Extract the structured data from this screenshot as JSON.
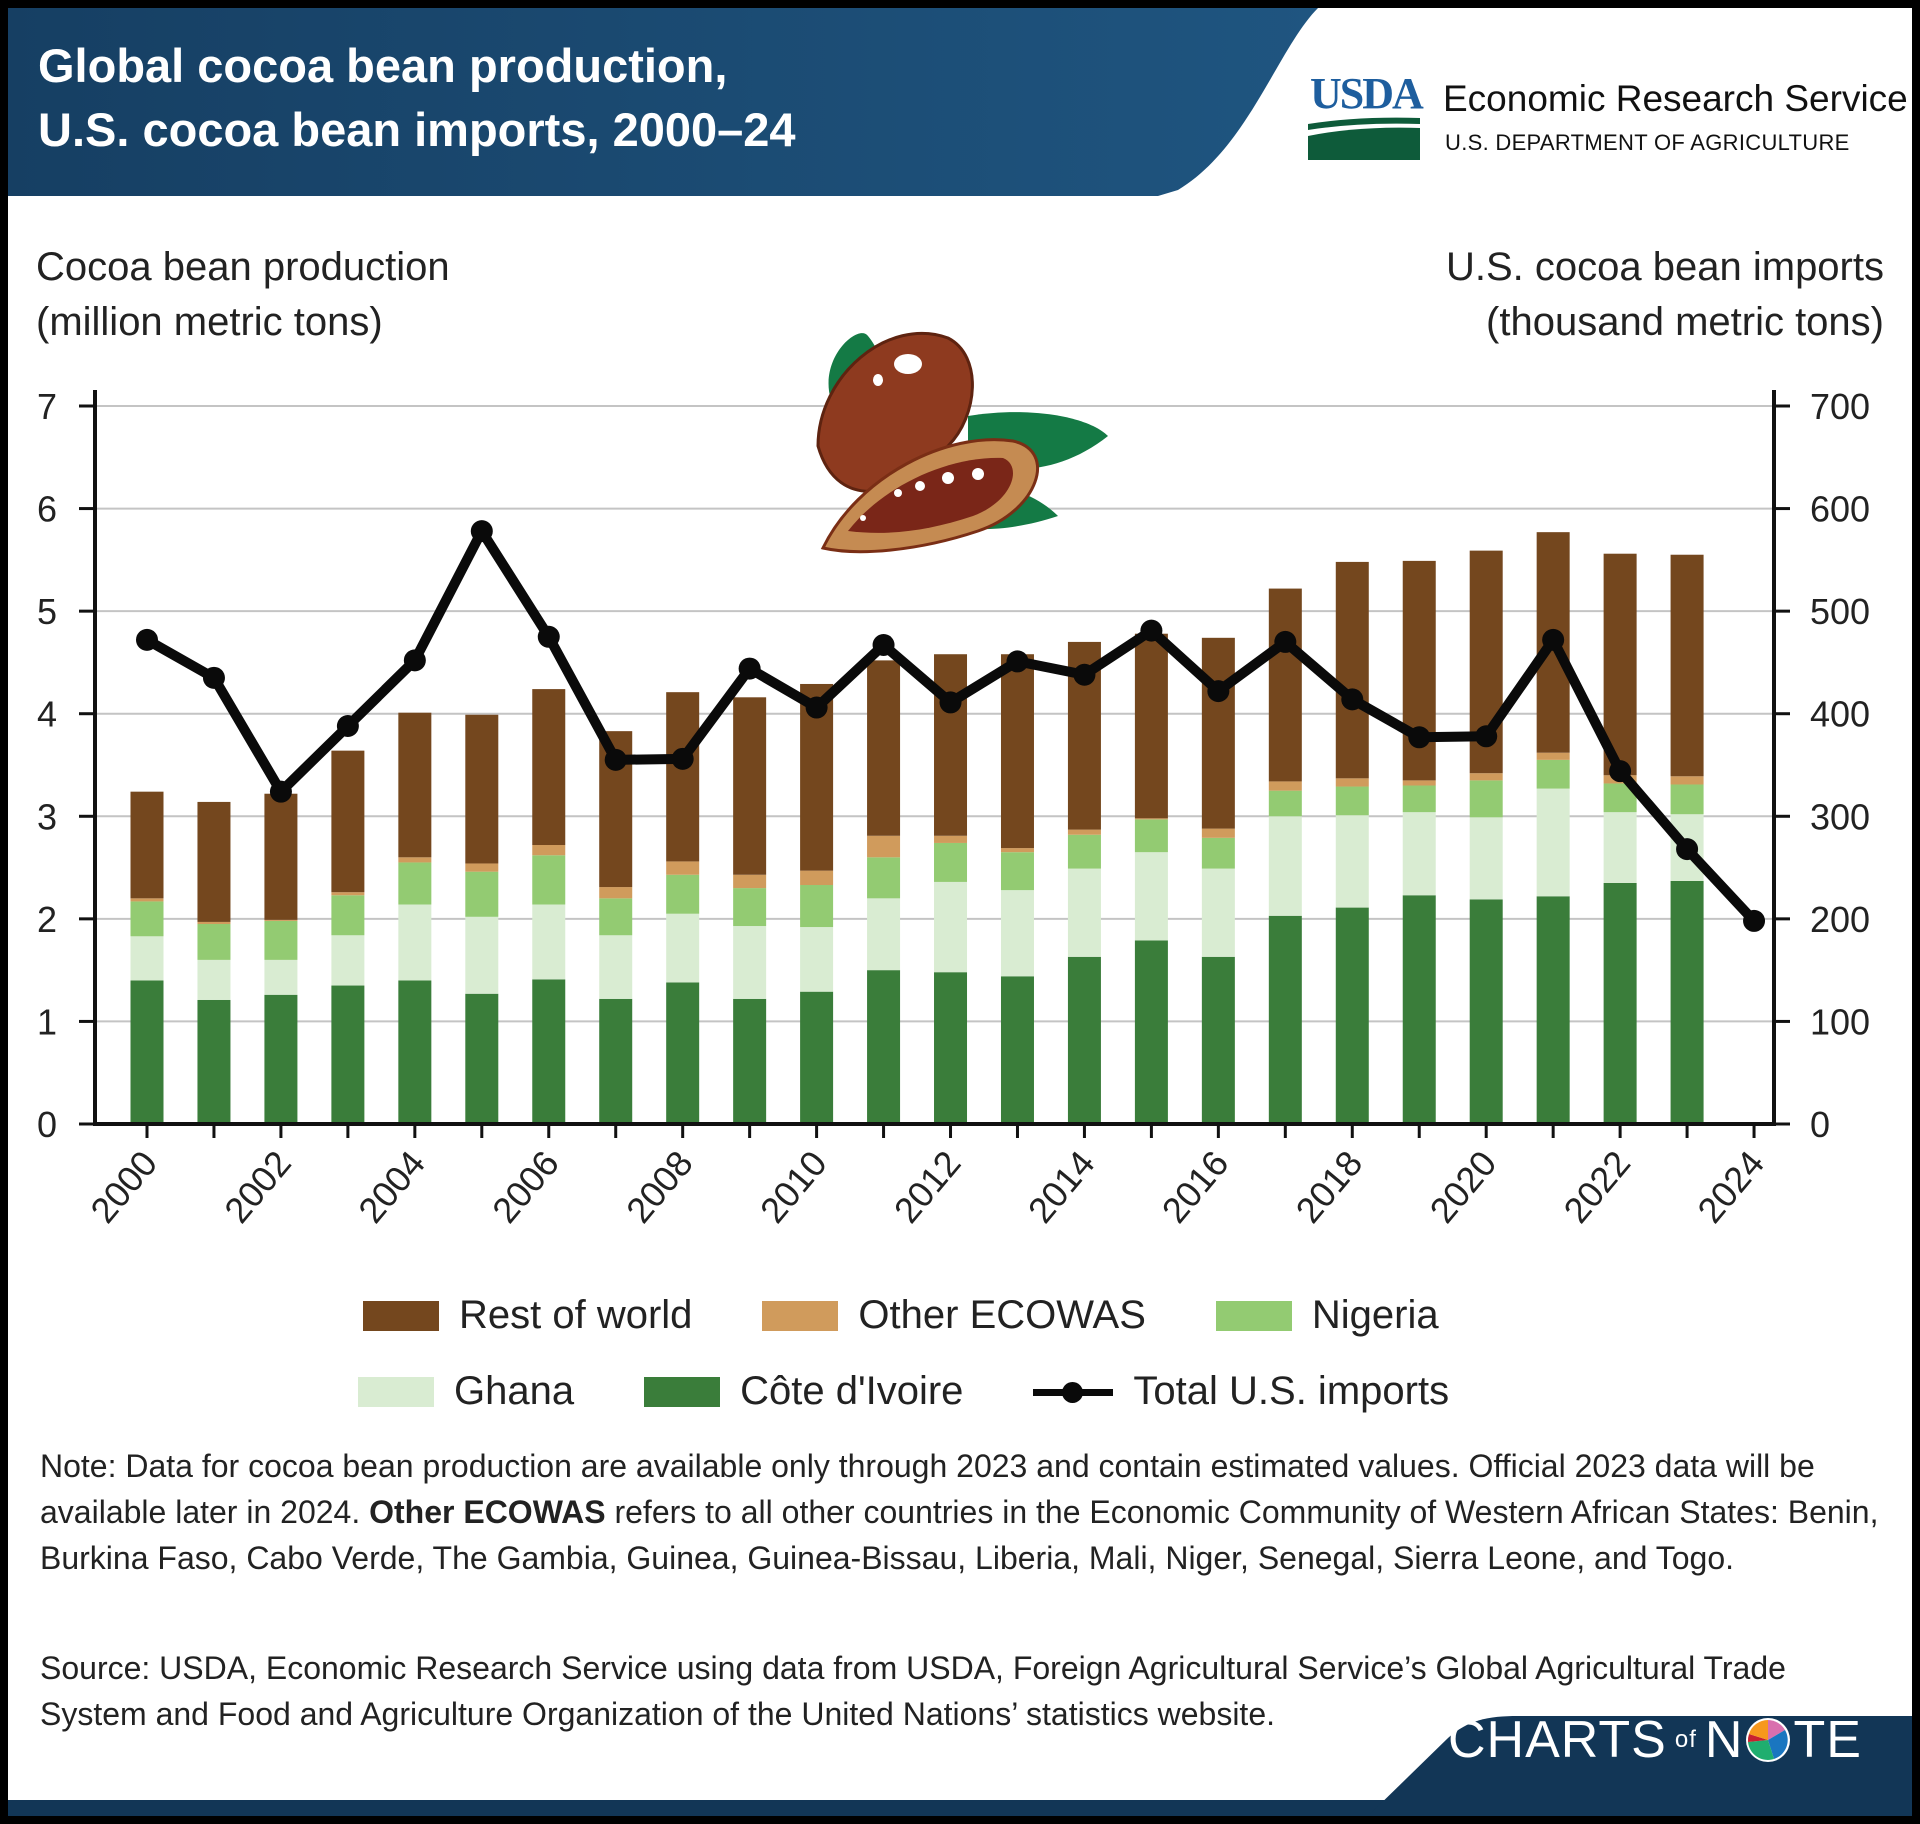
{
  "header": {
    "title_line1": "Global cocoa bean production,",
    "title_line2": "U.S. cocoa bean imports, 2000–24",
    "logo_usda": "USDA",
    "agency_name": "Economic Research Service",
    "department": "U.S. DEPARTMENT OF AGRICULTURE",
    "header_color": "#1b4a73"
  },
  "chart_data": {
    "type": "bar+line",
    "title": "Global cocoa bean production, U.S. cocoa bean imports, 2000–24",
    "ylabel_left_line1": "Cocoa bean production",
    "ylabel_left_line2": "(million metric tons)",
    "ylabel_right_line1": "U.S. cocoa bean imports",
    "ylabel_right_line2": "(thousand metric tons)",
    "ylim_left": [
      0,
      7
    ],
    "ylim_right": [
      0,
      700
    ],
    "yticks_left": [
      "0",
      "1",
      "2",
      "3",
      "4",
      "5",
      "6",
      "7"
    ],
    "yticks_right": [
      "0",
      "100",
      "200",
      "300",
      "400",
      "500",
      "600",
      "700"
    ],
    "xtick_labels": [
      "2000",
      "2002",
      "2004",
      "2006",
      "2008",
      "2010",
      "2012",
      "2014",
      "2016",
      "2018",
      "2020",
      "2022",
      "2024"
    ],
    "grid": true,
    "categories": [
      2000,
      2001,
      2002,
      2003,
      2004,
      2005,
      2006,
      2007,
      2008,
      2009,
      2010,
      2011,
      2012,
      2013,
      2014,
      2015,
      2016,
      2017,
      2018,
      2019,
      2020,
      2021,
      2022,
      2023,
      2024
    ],
    "stacked_series": [
      {
        "name": "Côte d'Ivoire",
        "color": "#3a7d3a",
        "values": [
          1.4,
          1.21,
          1.26,
          1.35,
          1.4,
          1.27,
          1.41,
          1.22,
          1.38,
          1.22,
          1.29,
          1.5,
          1.48,
          1.44,
          1.63,
          1.79,
          1.63,
          2.03,
          2.11,
          2.23,
          2.19,
          2.22,
          2.35,
          2.37,
          null
        ]
      },
      {
        "name": "Ghana",
        "color": "#d9ecd2",
        "values": [
          0.43,
          0.39,
          0.34,
          0.49,
          0.74,
          0.75,
          0.73,
          0.62,
          0.67,
          0.71,
          0.63,
          0.7,
          0.88,
          0.84,
          0.86,
          0.86,
          0.86,
          0.97,
          0.9,
          0.81,
          0.8,
          1.05,
          0.69,
          0.65,
          null
        ]
      },
      {
        "name": "Nigeria",
        "color": "#93cb72",
        "values": [
          0.34,
          0.35,
          0.38,
          0.39,
          0.41,
          0.44,
          0.48,
          0.36,
          0.38,
          0.37,
          0.41,
          0.4,
          0.38,
          0.37,
          0.33,
          0.32,
          0.3,
          0.25,
          0.28,
          0.26,
          0.36,
          0.28,
          0.28,
          0.29,
          null
        ]
      },
      {
        "name": "Other ECOWAS",
        "color": "#d09b5c",
        "values": [
          0.03,
          0.02,
          0.01,
          0.03,
          0.05,
          0.08,
          0.1,
          0.11,
          0.13,
          0.13,
          0.14,
          0.21,
          0.07,
          0.04,
          0.05,
          0.01,
          0.09,
          0.09,
          0.08,
          0.05,
          0.07,
          0.07,
          0.08,
          0.08,
          null
        ]
      },
      {
        "name": "Rest of world",
        "color": "#74471e",
        "values": [
          1.04,
          1.17,
          1.23,
          1.38,
          1.41,
          1.45,
          1.52,
          1.52,
          1.65,
          1.73,
          1.82,
          1.71,
          1.77,
          1.89,
          1.83,
          1.8,
          1.86,
          1.88,
          2.11,
          2.14,
          2.17,
          2.15,
          2.16,
          2.16,
          null
        ]
      }
    ],
    "line_series": {
      "name": "Total U.S. imports",
      "axis": "right",
      "color": "#0a0a0a",
      "values": [
        472,
        435,
        324,
        388,
        452,
        578,
        475,
        355,
        356,
        444,
        406,
        467,
        411,
        451,
        438,
        481,
        422,
        470,
        414,
        377,
        378,
        472,
        344,
        268,
        198
      ]
    }
  },
  "legend": {
    "row1": [
      "Rest of world",
      "Other ECOWAS",
      "Nigeria"
    ],
    "row2": [
      "Ghana",
      "Côte d'Ivoire",
      "Total U.S. imports"
    ]
  },
  "note": {
    "part1": "Note: Data for cocoa bean production are available only through 2023 and contain estimated values. Official 2023 data will be available later in 2024. ",
    "bold": "Other ECOWAS",
    "part2": " refers to all other countries in the Economic Community of Western African States: Benin, Burkina Faso, Cabo Verde, The Gambia, Guinea, Guinea-Bissau, Liberia, Mali, Niger, Senegal, Sierra Leone, and Togo."
  },
  "source": "Source: USDA, Economic Research Service using data from USDA, Foreign Agricultural Service’s Global Agricultural Trade System and Food and Agriculture Organization of the United Nations’ statistics website.",
  "footer": {
    "logo_left": "CHARTS",
    "logo_of": "of",
    "logo_n": "N",
    "logo_right": "TE",
    "footer_color": "#123656"
  }
}
